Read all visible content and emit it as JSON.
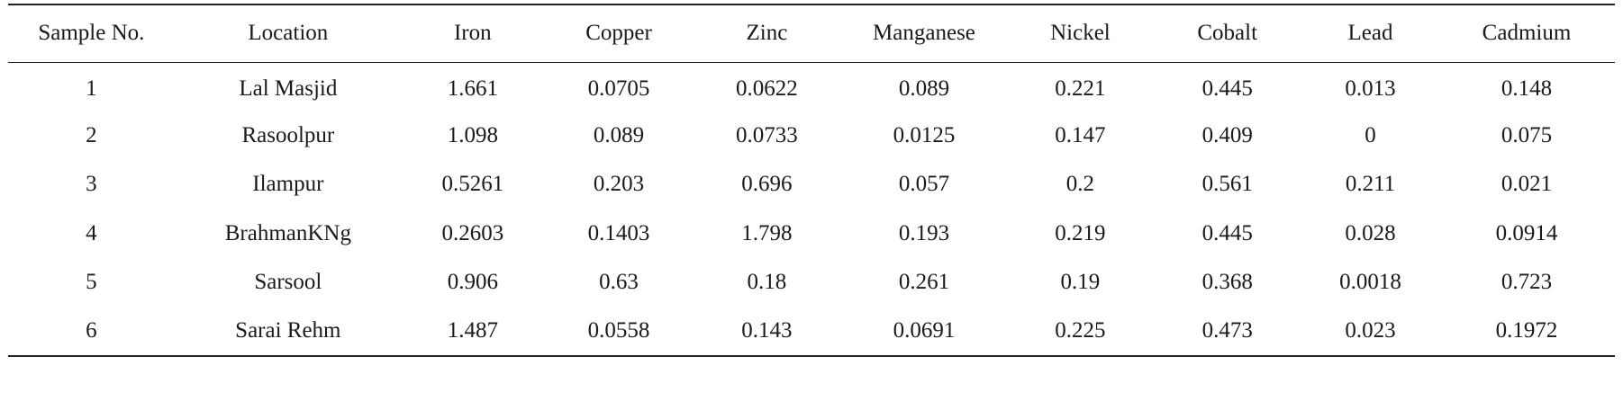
{
  "table": {
    "headers": [
      "Sample No.",
      "Location",
      "Iron",
      "Copper",
      "Zinc",
      "Manganese",
      "Nickel",
      "Cobalt",
      "Lead",
      "Cadmium"
    ],
    "rows": [
      [
        "1",
        "Lal Masjid",
        "1.661",
        "0.0705",
        "0.0622",
        "0.089",
        "0.221",
        "0.445",
        "0.013",
        "0.148"
      ],
      [
        "2",
        "Rasoolpur",
        "1.098",
        "0.089",
        "0.0733",
        "0.0125",
        "0.147",
        "0.409",
        "0",
        "0.075"
      ],
      [
        "3",
        "Ilampur",
        "0.5261",
        "0.203",
        "0.696",
        "0.057",
        "0.2",
        "0.561",
        "0.211",
        "0.021"
      ],
      [
        "4",
        "BrahmanKNg",
        "0.2603",
        "0.1403",
        "1.798",
        "0.193",
        "0.219",
        "0.445",
        "0.028",
        "0.0914"
      ],
      [
        "5",
        "Sarsool",
        "0.906",
        "0.63",
        "0.18",
        "0.261",
        "0.19",
        "0.368",
        "0.0018",
        "0.723"
      ],
      [
        "6",
        "Sarai Rehm",
        "1.487",
        "0.0558",
        "0.143",
        "0.0691",
        "0.225",
        "0.473",
        "0.023",
        "0.1972"
      ]
    ]
  }
}
